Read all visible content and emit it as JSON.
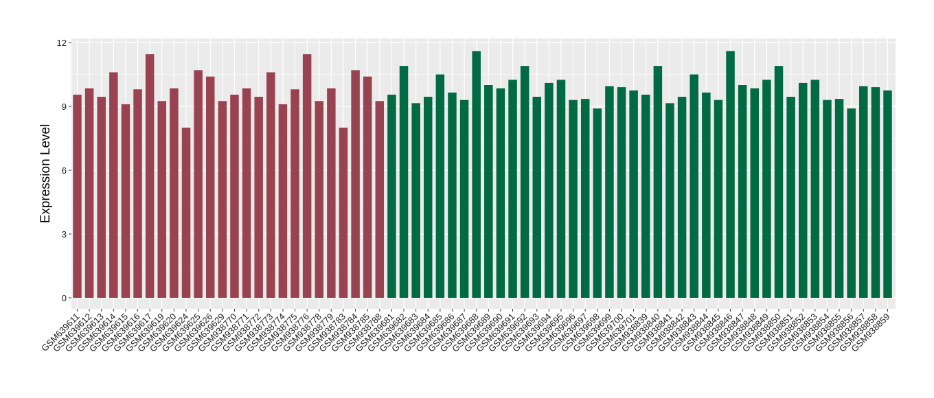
{
  "chart_data": {
    "type": "bar",
    "title": "",
    "xlabel": "",
    "ylabel": "Expression Level",
    "ylim": [
      0,
      12
    ],
    "yticks": [
      0,
      3,
      6,
      9,
      12
    ],
    "grid": true,
    "legend": "none",
    "colors": {
      "group_1": "#9A4350",
      "group_2": "#006A44",
      "panel_bg": "#EBEBEB",
      "grid": "#FFFFFF"
    },
    "categories": [
      "GSM639611",
      "GSM639612",
      "GSM639613",
      "GSM639614",
      "GSM639615",
      "GSM639616",
      "GSM639617",
      "GSM639619",
      "GSM639620",
      "GSM639624",
      "GSM639625",
      "GSM639626",
      "GSM639629",
      "GSM938770",
      "GSM938771",
      "GSM938772",
      "GSM938773",
      "GSM938774",
      "GSM938775",
      "GSM938776",
      "GSM938778",
      "GSM938779",
      "GSM938783",
      "GSM938784",
      "GSM938785",
      "GSM938788",
      "GSM639681",
      "GSM639682",
      "GSM639683",
      "GSM639684",
      "GSM639685",
      "GSM639686",
      "GSM639687",
      "GSM639688",
      "GSM639689",
      "GSM639690",
      "GSM639691",
      "GSM639692",
      "GSM639693",
      "GSM639694",
      "GSM639695",
      "GSM639696",
      "GSM639697",
      "GSM639698",
      "GSM639699",
      "GSM639700",
      "GSM639701",
      "GSM938839",
      "GSM938840",
      "GSM938841",
      "GSM938842",
      "GSM938843",
      "GSM938844",
      "GSM938845",
      "GSM938846",
      "GSM938847",
      "GSM938848",
      "GSM938849",
      "GSM938850",
      "GSM938851",
      "GSM938852",
      "GSM938853",
      "GSM938854",
      "GSM938855",
      "GSM938856",
      "GSM938857",
      "GSM938858",
      "GSM938859"
    ],
    "values": [
      9.55,
      9.85,
      9.45,
      10.6,
      9.1,
      9.8,
      11.45,
      9.25,
      9.85,
      8.0,
      10.7,
      10.4,
      9.25,
      9.55,
      9.85,
      9.45,
      10.6,
      9.1,
      9.8,
      11.45,
      9.25,
      9.85,
      8.0,
      10.7,
      10.4,
      9.25,
      9.55,
      10.9,
      9.15,
      9.45,
      10.5,
      9.65,
      9.3,
      11.6,
      10.0,
      9.85,
      10.25,
      10.9,
      9.45,
      10.1,
      10.25,
      9.3,
      9.35,
      8.9,
      9.95,
      9.9,
      9.75,
      9.55,
      10.9,
      9.15,
      9.45,
      10.5,
      9.65,
      9.3,
      11.6,
      10.0,
      9.85,
      10.25,
      10.9,
      9.45,
      10.1,
      10.25,
      9.3,
      9.35,
      8.9,
      9.95,
      9.9,
      9.75
    ],
    "groups": [
      1,
      1,
      1,
      1,
      1,
      1,
      1,
      1,
      1,
      1,
      1,
      1,
      1,
      1,
      1,
      1,
      1,
      1,
      1,
      1,
      1,
      1,
      1,
      1,
      1,
      1,
      2,
      2,
      2,
      2,
      2,
      2,
      2,
      2,
      2,
      2,
      2,
      2,
      2,
      2,
      2,
      2,
      2,
      2,
      2,
      2,
      2,
      2,
      2,
      2,
      2,
      2,
      2,
      2,
      2,
      2,
      2,
      2,
      2,
      2,
      2,
      2,
      2,
      2,
      2,
      2,
      2,
      2
    ]
  }
}
